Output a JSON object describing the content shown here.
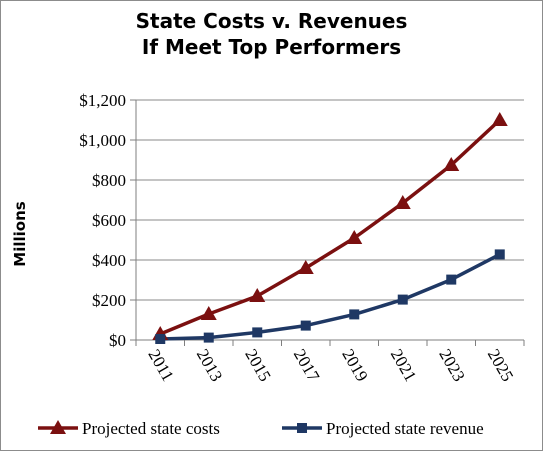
{
  "chart_data": {
    "type": "line",
    "title": [
      "State Costs v. Revenues",
      "If Meet Top Performers"
    ],
    "ylabel": "Millions",
    "xlabel": "",
    "x": [
      "2011",
      "2013",
      "2015",
      "2017",
      "2019",
      "2021",
      "2023",
      "2025"
    ],
    "ylim": [
      0,
      1200
    ],
    "yticks": [
      0,
      200,
      400,
      600,
      800,
      1000,
      1200
    ],
    "ytick_labels": [
      "$0",
      "$200",
      "$400",
      "$600",
      "$800",
      "$1,000",
      "$1,200"
    ],
    "grid": true,
    "legend_position": "bottom",
    "series": [
      {
        "name": "Projected state costs",
        "values": [
          30,
          130,
          220,
          360,
          510,
          685,
          875,
          1100
        ],
        "color": "#7b1010",
        "marker": "triangle"
      },
      {
        "name": "Projected state revenue",
        "values": [
          5,
          12,
          38,
          72,
          128,
          202,
          302,
          428
        ],
        "color": "#1f3864",
        "marker": "square"
      }
    ]
  }
}
